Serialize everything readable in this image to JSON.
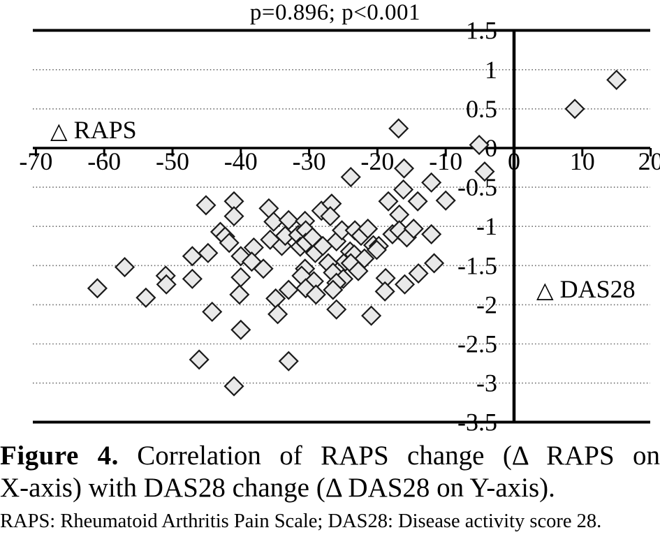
{
  "figure": {
    "caption_bold": "Figure 4.",
    "caption_line1_rest": "Correlation of RAPS change (Δ RAPS on",
    "caption_line2": "X-axis) with DAS28 change (Δ DAS28 on Y-axis).",
    "footnote": "RAPS: Rheumatoid Arthritis Pain Scale; DAS28: Disease activity score 28."
  },
  "annotations": {
    "raps": {
      "symbol": "△",
      "label": "RAPS"
    },
    "das28": {
      "symbol": "△",
      "label": "DAS28"
    }
  },
  "colors": {
    "background": "#ffffff",
    "axis": "#000000",
    "grid": "#666666",
    "marker_fill": "#e9e9e9",
    "marker_stroke": "#1a1a1a",
    "text": "#000000"
  },
  "chart_data": {
    "type": "scatter",
    "title": "p=0.896; p<0.001",
    "xlabel": "Δ RAPS",
    "ylabel": "Δ DAS28",
    "xlim": [
      -70,
      20
    ],
    "ylim": [
      -3.5,
      1.5
    ],
    "x_ticks": [
      -70,
      -60,
      -50,
      -40,
      -30,
      -20,
      -10,
      0,
      10,
      20
    ],
    "x_tick_labels": [
      "-70",
      "-60",
      "-50",
      "-40",
      "-30",
      "-20",
      "-10",
      "0",
      "10",
      "20"
    ],
    "y_ticks": [
      1.5,
      1,
      0.5,
      0,
      -0.5,
      -1,
      -1.5,
      -2,
      -2.5,
      -3,
      -3.5
    ],
    "y_tick_labels": [
      "1.5",
      "1",
      "0.5",
      "0",
      "-0.5",
      "-1",
      "-1.5",
      "-2",
      "-2.5",
      "-3",
      "-3.5"
    ],
    "gridlines_at_y": [
      1,
      0.5,
      -0.5,
      -1,
      -1.5,
      -2,
      -2.5,
      -3
    ],
    "grid": "dotted horizontal lines",
    "legend_position": "Δ RAPS label inside upper-left; Δ DAS28 label inside right of y-axis",
    "marker": {
      "shape": "diamond",
      "fill": "#e9e9e9",
      "stroke": "#1a1a1a"
    },
    "points": [
      [
        15.0,
        0.87
      ],
      [
        8.9,
        0.5
      ],
      [
        -5.1,
        0.04
      ],
      [
        -16.9,
        0.25
      ],
      [
        -23.9,
        -0.37
      ],
      [
        -16.1,
        -0.26
      ],
      [
        -12.1,
        -0.44
      ],
      [
        -4.3,
        -0.3
      ],
      [
        -16.2,
        -0.53
      ],
      [
        -18.4,
        -0.68
      ],
      [
        -14.1,
        -0.68
      ],
      [
        -10.0,
        -0.67
      ],
      [
        -16.8,
        -0.85
      ],
      [
        -45.1,
        -0.73
      ],
      [
        -41.0,
        -0.68
      ],
      [
        -41.0,
        -0.87
      ],
      [
        -35.9,
        -0.77
      ],
      [
        -35.2,
        -0.94
      ],
      [
        -33.0,
        -0.92
      ],
      [
        -30.6,
        -0.93
      ],
      [
        -28.2,
        -0.8
      ],
      [
        -26.7,
        -0.71
      ],
      [
        -26.9,
        -0.87
      ],
      [
        -43.0,
        -1.07
      ],
      [
        -42.3,
        -1.13
      ],
      [
        -41.7,
        -1.21
      ],
      [
        -40.0,
        -1.38
      ],
      [
        -38.1,
        -1.27
      ],
      [
        -35.7,
        -1.17
      ],
      [
        -34.0,
        -1.25
      ],
      [
        -33.5,
        -1.12
      ],
      [
        -31.6,
        -1.11
      ],
      [
        -31.3,
        -1.26
      ],
      [
        -30.5,
        -1.05
      ],
      [
        -30.5,
        -1.21
      ],
      [
        -29.5,
        -1.14
      ],
      [
        -29.1,
        -1.34
      ],
      [
        -28.0,
        -1.25
      ],
      [
        -26.0,
        -1.19
      ],
      [
        -25.2,
        -1.05
      ],
      [
        -23.3,
        -1.05
      ],
      [
        -22.4,
        -1.12
      ],
      [
        -21.4,
        -1.03
      ],
      [
        -20.6,
        -1.24
      ],
      [
        -19.8,
        -1.25
      ],
      [
        -17.8,
        -1.1
      ],
      [
        -16.8,
        -1.05
      ],
      [
        -15.7,
        -1.14
      ],
      [
        -14.7,
        -1.03
      ],
      [
        -12.1,
        -1.1
      ],
      [
        -38.4,
        -1.45
      ],
      [
        -36.7,
        -1.54
      ],
      [
        -40.0,
        -1.65
      ],
      [
        -47.1,
        -1.38
      ],
      [
        -44.8,
        -1.34
      ],
      [
        -30.6,
        -1.54
      ],
      [
        -31.1,
        -1.63
      ],
      [
        -27.2,
        -1.47
      ],
      [
        -26.5,
        -1.59
      ],
      [
        -24.7,
        -1.45
      ],
      [
        -24.0,
        -1.32
      ],
      [
        -23.4,
        -1.36
      ],
      [
        -23.9,
        -1.47
      ],
      [
        -22.8,
        -1.57
      ],
      [
        -21.9,
        -1.41
      ],
      [
        -20.1,
        -1.3
      ],
      [
        -25.0,
        -1.67
      ],
      [
        -18.8,
        -1.66
      ],
      [
        -14.0,
        -1.6
      ],
      [
        -11.7,
        -1.47
      ],
      [
        -61.0,
        -1.79
      ],
      [
        -57.0,
        -1.52
      ],
      [
        -53.9,
        -1.91
      ],
      [
        -51.0,
        -1.63
      ],
      [
        -50.9,
        -1.74
      ],
      [
        -47.1,
        -1.67
      ],
      [
        -40.2,
        -1.87
      ],
      [
        -34.9,
        -1.92
      ],
      [
        -33.0,
        -1.81
      ],
      [
        -29.3,
        -1.7
      ],
      [
        -30.5,
        -1.79
      ],
      [
        -29.0,
        -1.87
      ],
      [
        -26.0,
        -1.72
      ],
      [
        -26.5,
        -1.81
      ],
      [
        -26.0,
        -2.06
      ],
      [
        -18.9,
        -1.83
      ],
      [
        -16.0,
        -1.74
      ],
      [
        -44.2,
        -2.09
      ],
      [
        -34.6,
        -2.12
      ],
      [
        -20.9,
        -2.14
      ],
      [
        -40.0,
        -2.32
      ],
      [
        -46.1,
        -2.7
      ],
      [
        -33.0,
        -2.72
      ],
      [
        -41.0,
        -3.04
      ]
    ]
  }
}
